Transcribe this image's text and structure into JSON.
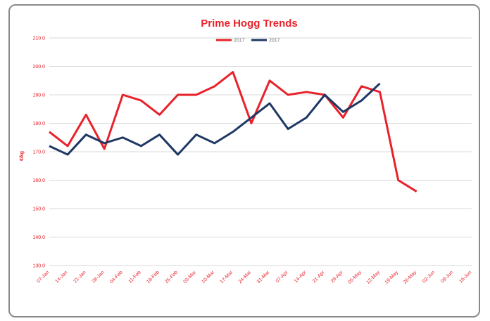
{
  "chart_data": {
    "type": "line",
    "title": "Prime Hogg Trends",
    "xlabel": "",
    "ylabel": "€/kg",
    "ylim": [
      130,
      210
    ],
    "y_ticks": [
      "210.0",
      "200.0",
      "190.0",
      "180.0",
      "170.0",
      "160.0",
      "150.0",
      "140.0",
      "130.0"
    ],
    "grid": true,
    "legend_position": "top-center",
    "categories": [
      "07-Jan",
      "14-Jan",
      "21-Jan",
      "28-Jan",
      "04-Feb",
      "11-Feb",
      "18-Feb",
      "25-Feb",
      "03-Mar",
      "10-Mar",
      "17-Mar",
      "24-Mar",
      "31-Mar",
      "07-Apr",
      "14-Apr",
      "21-Apr",
      "28-Apr",
      "05-May",
      "12-May",
      "19-May",
      "26-May",
      "02-Jun",
      "09-Jun",
      "16-Jun"
    ],
    "series": [
      {
        "name": "2017",
        "color": "#e8222a",
        "values": [
          177,
          172,
          183,
          171,
          190,
          188,
          183,
          190,
          190,
          193,
          198,
          180,
          195,
          190,
          191,
          190,
          182,
          193,
          191,
          160,
          156,
          null,
          null,
          null
        ]
      },
      {
        "name": "2017",
        "color": "#1f3864",
        "values": [
          172,
          169,
          176,
          173,
          175,
          172,
          176,
          169,
          176,
          173,
          177,
          182,
          187,
          178,
          182,
          190,
          184,
          188,
          194,
          null,
          null,
          null,
          null,
          null
        ]
      }
    ],
    "colors": {
      "axis_text": "#e8222a",
      "grid": "#d9d9d9",
      "border": "#8a8a8a"
    }
  }
}
